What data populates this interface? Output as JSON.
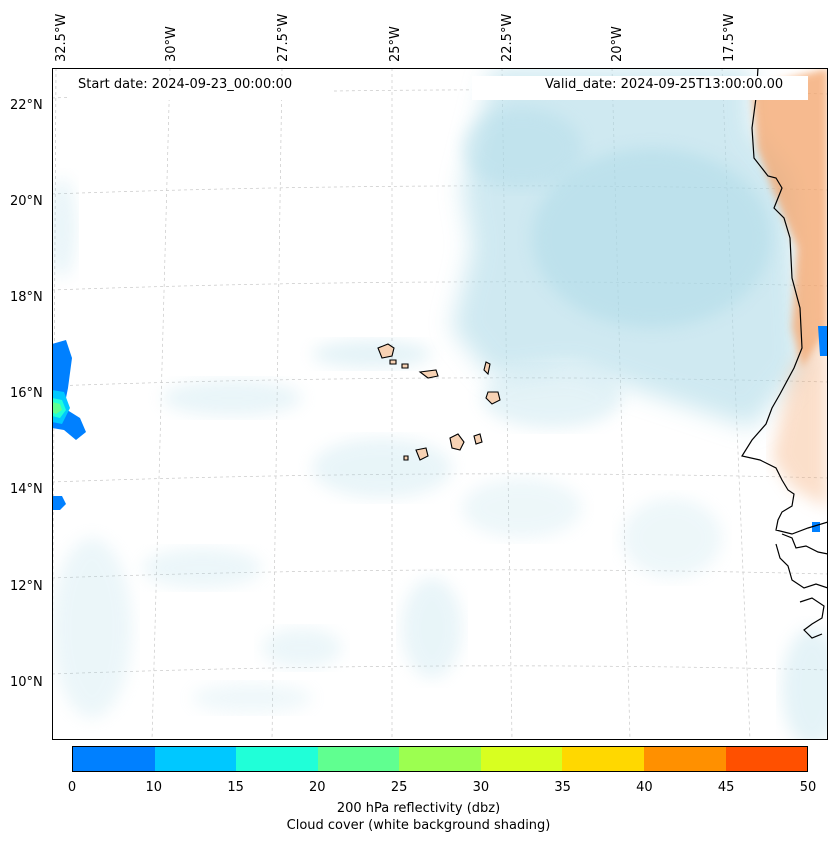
{
  "map": {
    "title_left": "Start date: 2024-09-23_00:00:00",
    "title_right": "Valid_date: 2024-09-25T13:00:00.00",
    "lon_labels": [
      "32.5°W",
      "30°W",
      "27.5°W",
      "25°W",
      "22.5°W",
      "20°W",
      "17.5°W"
    ],
    "lat_labels": [
      "22°N",
      "20°N",
      "18°N",
      "16°N",
      "14°N",
      "12°N",
      "10°N"
    ]
  },
  "colorbar": {
    "ticks": [
      "0",
      "10",
      "15",
      "20",
      "25",
      "30",
      "35",
      "40",
      "45",
      "50"
    ],
    "colors": [
      "#0080ff",
      "#00c8ff",
      "#20ffd8",
      "#60ff90",
      "#9cff50",
      "#d8ff20",
      "#ffd800",
      "#ff9000",
      "#ff5000"
    ],
    "label": "200 hPa reflectivity (dbz)",
    "sublabel": "Cloud cover (white background shading)"
  },
  "colors": {
    "cloud": "#a8d8e6",
    "land_shade": "#f4a46a",
    "island_fill": "#f7d2b4",
    "coast": "#000000",
    "grid": "#c8c8c8"
  }
}
